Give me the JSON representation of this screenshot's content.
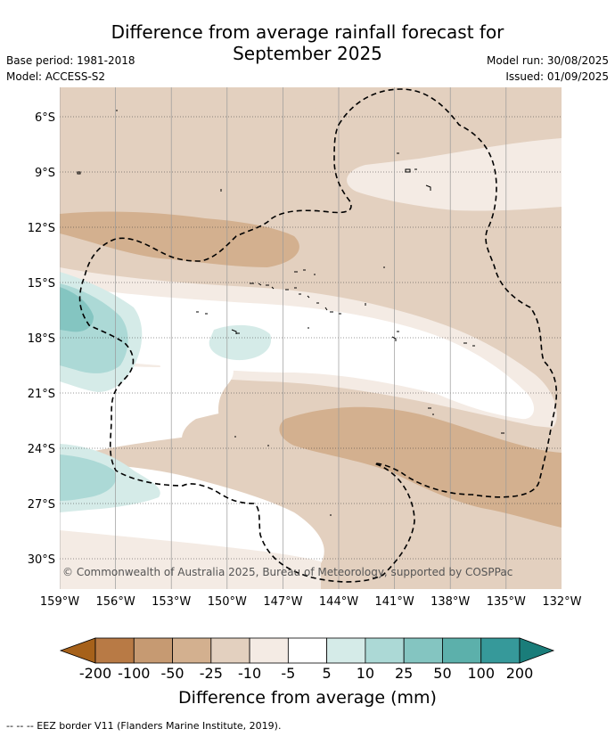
{
  "title_line1": "Difference from average rainfall forecast for",
  "title_line2": "September 2025",
  "base_period": "Base period: 1981-2018",
  "model": "Model: ACCESS-S2",
  "model_run": "Model run: 30/08/2025",
  "issued": "Issued: 01/09/2025",
  "copyright": "© Commonwealth of Australia 2025, Bureau of Meteorology, supported by COSPPac",
  "lat_labels": [
    "6°S",
    "9°S",
    "12°S",
    "15°S",
    "18°S",
    "21°S",
    "24°S",
    "27°S",
    "30°S"
  ],
  "lon_labels": [
    "159°W",
    "156°W",
    "153°W",
    "150°W",
    "147°W",
    "144°W",
    "141°W",
    "138°W",
    "135°W",
    "132°W"
  ],
  "colorbar": {
    "title": "Difference from average (mm)",
    "tick_labels": [
      "-200",
      "-100",
      "-50",
      "-25",
      "-10",
      "-5",
      "5",
      "10",
      "25",
      "50",
      "100",
      "200"
    ],
    "colors": [
      "#a6611a",
      "#b87a45",
      "#c69a72",
      "#d3b08f",
      "#e3d0bf",
      "#f4ebe4",
      "#ffffff",
      "#d5ebe8",
      "#acd9d6",
      "#84c5c1",
      "#5cb0ab",
      "#36999a",
      "#1a7d7a"
    ]
  },
  "footnote": "--  --  -- EEZ border V11 (Flanders Marine Institute, 2019)."
}
